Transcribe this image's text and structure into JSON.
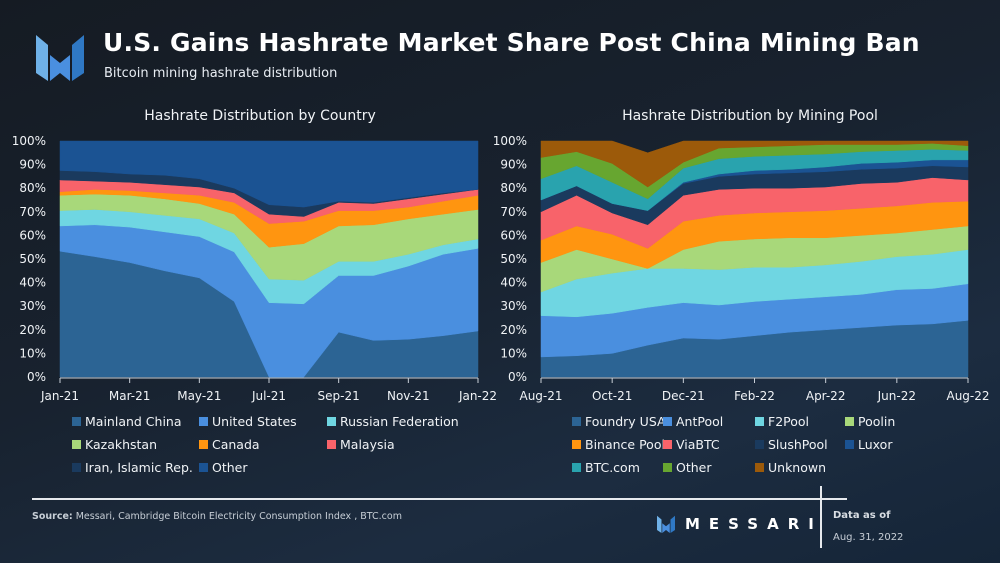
{
  "header": {
    "title": "U.S. Gains Hashrate Market Share Post China Mining Ban",
    "subtitle": "Bitcoin mining hashrate distribution"
  },
  "footer": {
    "source_label": "Source:",
    "source_text": " Messari, Cambridge Bitcoin Electricity Consumption Index , BTC.com",
    "brand": "MESSARI",
    "asof_label": "Data as of",
    "asof_date": "Aug. 31, 2022"
  },
  "chart_data": [
    {
      "type": "area",
      "stacked": true,
      "title": "Hashrate Distribution by Country",
      "xlabel": "",
      "ylabel": "",
      "ylim": [
        0,
        100
      ],
      "y_ticks": [
        "0%",
        "10%",
        "20%",
        "30%",
        "40%",
        "50%",
        "60%",
        "70%",
        "80%",
        "90%",
        "100%"
      ],
      "x": [
        "Jan-21",
        "Feb-21",
        "Mar-21",
        "Apr-21",
        "May-21",
        "Jun-21",
        "Jul-21",
        "Aug-21",
        "Sep-21",
        "Oct-21",
        "Nov-21",
        "Dec-21",
        "Jan-22"
      ],
      "x_tick_labels": [
        "Jan-21",
        "Mar-21",
        "May-21",
        "Jul-21",
        "Sep-21",
        "Nov-21",
        "Jan-22"
      ],
      "grid": false,
      "legend_position": "bottom",
      "series": [
        {
          "name": "Mainland China",
          "color": "#2c6494",
          "values": [
            53.3,
            51.0,
            48.5,
            45.0,
            42.0,
            32.0,
            0.0,
            0.0,
            19.0,
            15.5,
            16.0,
            17.5,
            19.5
          ]
        },
        {
          "name": "United States",
          "color": "#4a8fdf",
          "values": [
            10.7,
            13.5,
            15.0,
            16.5,
            17.5,
            21.0,
            31.5,
            31.0,
            24.0,
            27.5,
            31.0,
            34.5,
            35.0
          ]
        },
        {
          "name": "Russian Federation",
          "color": "#6fd6e2",
          "values": [
            6.5,
            6.5,
            6.5,
            7.0,
            7.5,
            8.0,
            10.0,
            10.0,
            6.0,
            6.0,
            5.0,
            4.0,
            4.0
          ]
        },
        {
          "name": "Kazakhstan",
          "color": "#a8d87a",
          "values": [
            6.5,
            6.5,
            7.0,
            7.0,
            6.5,
            8.0,
            13.5,
            15.5,
            15.0,
            15.5,
            15.0,
            13.0,
            12.5
          ]
        },
        {
          "name": "Canada",
          "color": "#ff9510",
          "values": [
            1.5,
            2.0,
            2.0,
            2.5,
            3.5,
            5.0,
            10.0,
            9.5,
            6.5,
            6.0,
            5.0,
            5.5,
            6.0
          ]
        },
        {
          "name": "Malaysia",
          "color": "#f8636a",
          "values": [
            5.0,
            3.5,
            3.5,
            3.5,
            3.5,
            4.0,
            4.0,
            2.0,
            3.5,
            3.0,
            3.5,
            3.0,
            2.5
          ]
        },
        {
          "name": "Iran, Islamic Rep.",
          "color": "#1a3a5e",
          "values": [
            4.0,
            4.0,
            3.5,
            4.0,
            3.5,
            2.0,
            4.0,
            4.0,
            0.5,
            0.5,
            0.5,
            0.5,
            0.0
          ]
        },
        {
          "name": "Other",
          "color": "#1b5393",
          "values": [
            12.5,
            13.0,
            14.0,
            14.5,
            16.0,
            20.0,
            27.0,
            28.0,
            25.5,
            26.0,
            24.0,
            22.0,
            20.5
          ]
        }
      ]
    },
    {
      "type": "area",
      "stacked": true,
      "title": "Hashrate Distribution by Mining Pool",
      "xlabel": "",
      "ylabel": "",
      "ylim": [
        0,
        100
      ],
      "y_ticks": [
        "0%",
        "10%",
        "20%",
        "30%",
        "40%",
        "50%",
        "60%",
        "70%",
        "80%",
        "90%",
        "100%"
      ],
      "x": [
        "Aug-21",
        "Sep-21",
        "Oct-21",
        "Nov-21",
        "Dec-21",
        "Jan-22",
        "Feb-22",
        "Mar-22",
        "Apr-22",
        "May-22",
        "Jun-22",
        "Jul-22",
        "Aug-22"
      ],
      "x_tick_labels": [
        "Aug-21",
        "Oct-21",
        "Dec-21",
        "Feb-22",
        "Apr-22",
        "Jun-22",
        "Aug-22"
      ],
      "grid": false,
      "legend_position": "bottom",
      "series": [
        {
          "name": "Foundry USA",
          "color": "#2c6494",
          "values": [
            8.5,
            9.0,
            10.0,
            13.5,
            16.5,
            16.0,
            17.5,
            19.0,
            20.0,
            21.0,
            22.0,
            22.5,
            24.0
          ]
        },
        {
          "name": "AntPool",
          "color": "#4a8fdf",
          "values": [
            17.5,
            16.5,
            17.0,
            16.0,
            15.0,
            14.5,
            14.5,
            14.0,
            14.0,
            14.0,
            15.0,
            15.0,
            15.5
          ]
        },
        {
          "name": "F2Pool",
          "color": "#6fd6e2",
          "values": [
            10.0,
            16.0,
            17.0,
            16.5,
            14.5,
            15.0,
            14.5,
            13.5,
            13.5,
            14.0,
            14.0,
            14.5,
            14.5
          ]
        },
        {
          "name": "Poolin",
          "color": "#a8d87a",
          "values": [
            12.5,
            12.5,
            6.0,
            0.0,
            8.0,
            12.0,
            12.0,
            12.5,
            11.5,
            11.0,
            10.0,
            10.5,
            10.0
          ]
        },
        {
          "name": "Binance Pool",
          "color": "#ff9510",
          "values": [
            9.5,
            10.0,
            10.5,
            8.5,
            12.0,
            11.0,
            11.0,
            11.0,
            11.5,
            11.5,
            11.5,
            11.5,
            10.5
          ]
        },
        {
          "name": "ViaBTC",
          "color": "#f8636a",
          "values": [
            12.0,
            13.0,
            9.0,
            10.0,
            11.0,
            11.0,
            10.5,
            10.0,
            10.0,
            10.5,
            10.0,
            10.5,
            9.0
          ]
        },
        {
          "name": "SlushPool",
          "color": "#1a3a5e",
          "values": [
            5.0,
            4.0,
            4.0,
            6.0,
            5.0,
            5.5,
            6.0,
            6.5,
            6.5,
            6.0,
            6.0,
            5.0,
            5.5
          ]
        },
        {
          "name": "Luxor",
          "color": "#1b5393",
          "values": [
            0.0,
            0.0,
            0.0,
            0.0,
            0.5,
            1.0,
            1.5,
            1.5,
            2.0,
            2.5,
            2.5,
            2.5,
            3.0
          ]
        },
        {
          "name": "BTC.com",
          "color": "#29a3ae",
          "values": [
            9.0,
            8.5,
            9.0,
            5.0,
            6.0,
            6.5,
            6.0,
            6.0,
            5.5,
            5.0,
            5.0,
            4.5,
            4.0
          ]
        },
        {
          "name": "Other",
          "color": "#67a630",
          "values": [
            9.0,
            6.0,
            8.0,
            5.0,
            2.5,
            4.5,
            4.0,
            4.0,
            4.0,
            3.0,
            2.5,
            2.5,
            2.0
          ]
        },
        {
          "name": "Unknown",
          "color": "#9c5a0a",
          "values": [
            7.0,
            4.5,
            9.5,
            14.5,
            9.0,
            3.0,
            2.5,
            2.0,
            1.5,
            1.5,
            1.5,
            1.0,
            2.0
          ]
        }
      ]
    }
  ]
}
